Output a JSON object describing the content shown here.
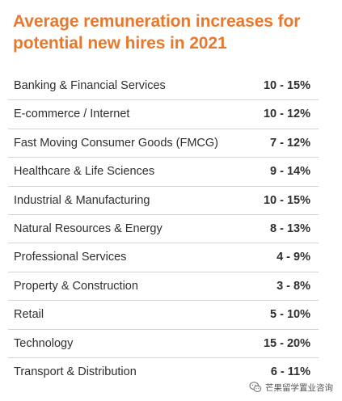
{
  "title": "Average remuneration increases for potential new hires in 2021",
  "rows": [
    {
      "label": "Banking & Financial Services",
      "value": "10 - 15%"
    },
    {
      "label": "E-commerce / Internet",
      "value": "10 - 12%"
    },
    {
      "label": "Fast Moving Consumer Goods (FMCG)",
      "value": "7 - 12%"
    },
    {
      "label": "Healthcare & Life Sciences",
      "value": "9 - 14%"
    },
    {
      "label": "Industrial & Manufacturing",
      "value": "10 - 15%"
    },
    {
      "label": "Natural Resources & Energy",
      "value": "8 - 13%"
    },
    {
      "label": "Professional Services",
      "value": "4 - 9%"
    },
    {
      "label": "Property & Construction",
      "value": "3 - 8%"
    },
    {
      "label": "Retail",
      "value": "5 - 10%"
    },
    {
      "label": "Technology",
      "value": "15 - 20%"
    },
    {
      "label": "Transport & Distribution",
      "value": "6 - 11%"
    }
  ],
  "watermark": {
    "text": "芒果留学置业咨询",
    "icon": "wechat-icon"
  },
  "colors": {
    "title": "#e8782b",
    "text": "#2f2f2f",
    "divider": "#d4d4d4"
  }
}
